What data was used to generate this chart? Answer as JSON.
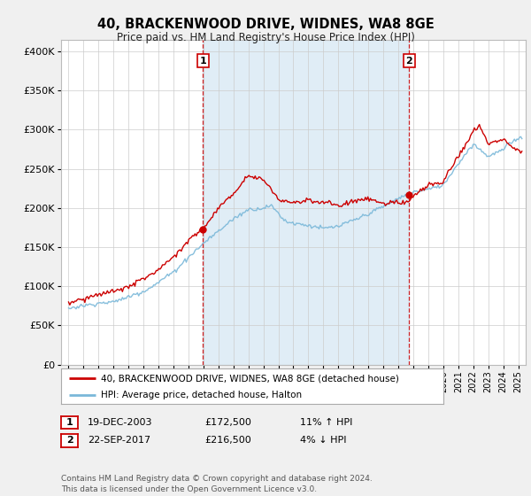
{
  "title": "40, BRACKENWOOD DRIVE, WIDNES, WA8 8GE",
  "subtitle": "Price paid vs. HM Land Registry's House Price Index (HPI)",
  "ylabel_ticks": [
    "£0",
    "£50K",
    "£100K",
    "£150K",
    "£200K",
    "£250K",
    "£300K",
    "£350K",
    "£400K"
  ],
  "ytick_values": [
    0,
    50000,
    100000,
    150000,
    200000,
    250000,
    300000,
    350000,
    400000
  ],
  "ylim": [
    0,
    415000
  ],
  "xlim_start": 1994.5,
  "xlim_end": 2025.5,
  "hpi_color": "#7ab8d9",
  "price_color": "#cc0000",
  "fill_color": "#c8dff0",
  "marker1_year": 2003.97,
  "marker1_price": 172500,
  "marker1_label": "1",
  "marker2_year": 2017.72,
  "marker2_price": 216500,
  "marker2_label": "2",
  "legend_line1": "40, BRACKENWOOD DRIVE, WIDNES, WA8 8GE (detached house)",
  "legend_line2": "HPI: Average price, detached house, Halton",
  "table_row1": [
    "1",
    "19-DEC-2003",
    "£172,500",
    "11% ↑ HPI"
  ],
  "table_row2": [
    "2",
    "22-SEP-2017",
    "£216,500",
    "4% ↓ HPI"
  ],
  "footer": "Contains HM Land Registry data © Crown copyright and database right 2024.\nThis data is licensed under the Open Government Licence v3.0.",
  "bg_color": "#f0f0f0",
  "plot_bg_color": "#ffffff",
  "grid_color": "#cccccc",
  "vline_color": "#cc0000"
}
